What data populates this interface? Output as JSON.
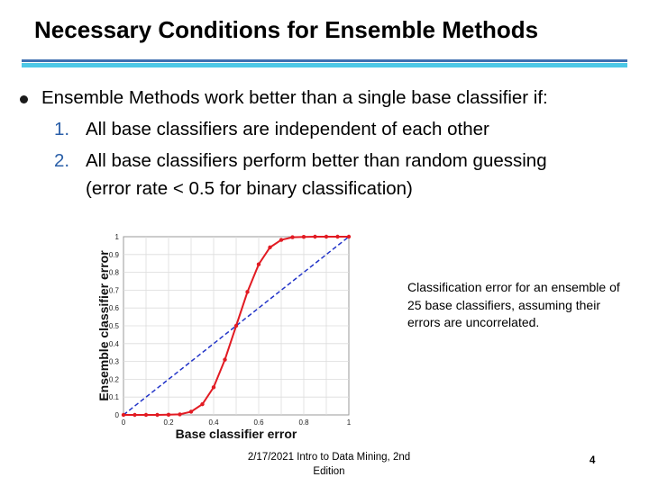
{
  "slide": {
    "title": "Necessary Conditions for Ensemble Methods",
    "bullet_main": "Ensemble Methods work better than a single base classifier if:",
    "items": [
      {
        "num": "1.",
        "text": "All base classifiers are independent of each other"
      },
      {
        "num": "2.",
        "text": "All base classifiers perform better than random guessing"
      }
    ],
    "item2_cont": "(error rate < 0.5 for binary classification)",
    "caption": "Classification error for an ensemble of 25 base classifiers, assuming their errors are uncorrelated.",
    "footer": "2/17/2021  Intro to Data Mining, 2nd Edition",
    "page_number": "4"
  },
  "colors": {
    "curve": "#e21b23",
    "diagonal": "#2234c8",
    "rule_dark": "#3e6fb0",
    "rule_light": "#4dc8e6"
  },
  "chart_data": {
    "type": "line",
    "xlabel": "Base classifier error",
    "ylabel": "Ensemble classifier error",
    "xlim": [
      0,
      1
    ],
    "ylim": [
      0,
      1
    ],
    "grid": true,
    "x_ticks": [
      "0",
      "0.2",
      "0.4",
      "0.6",
      "0.8",
      "1"
    ],
    "y_ticks": [
      "0",
      "0.1",
      "0.2",
      "0.3",
      "0.4",
      "0.5",
      "0.6",
      "0.7",
      "0.8",
      "0.9",
      "1"
    ],
    "series": [
      {
        "style": "solid-red-markers",
        "x": [
          0,
          0.05,
          0.1,
          0.15,
          0.2,
          0.25,
          0.3,
          0.35,
          0.4,
          0.45,
          0.5,
          0.55,
          0.6,
          0.65,
          0.7,
          0.75,
          0.8,
          0.85,
          0.9,
          0.95,
          1
        ],
        "y": [
          0,
          0,
          0,
          0,
          0.001,
          0.003,
          0.018,
          0.06,
          0.155,
          0.31,
          0.5,
          0.69,
          0.845,
          0.94,
          0.982,
          0.997,
          0.999,
          1,
          1,
          1,
          1
        ]
      },
      {
        "style": "dashed-blue",
        "x": [
          0,
          1
        ],
        "y": [
          0,
          1
        ]
      }
    ]
  }
}
